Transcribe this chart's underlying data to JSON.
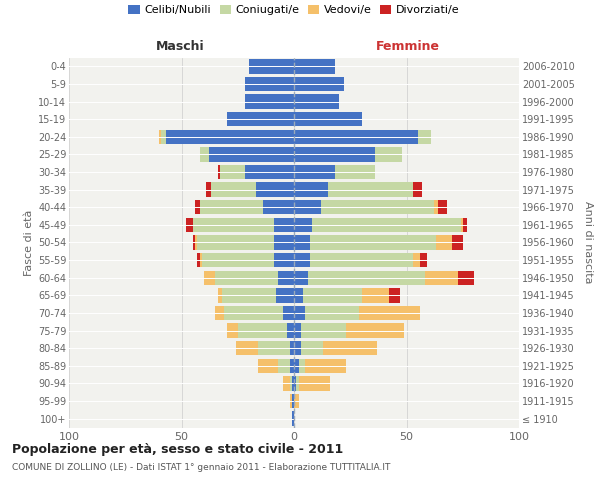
{
  "age_groups": [
    "100+",
    "95-99",
    "90-94",
    "85-89",
    "80-84",
    "75-79",
    "70-74",
    "65-69",
    "60-64",
    "55-59",
    "50-54",
    "45-49",
    "40-44",
    "35-39",
    "30-34",
    "25-29",
    "20-24",
    "15-19",
    "10-14",
    "5-9",
    "0-4"
  ],
  "birth_years": [
    "≤ 1910",
    "1911-1915",
    "1916-1920",
    "1921-1925",
    "1926-1930",
    "1931-1935",
    "1936-1940",
    "1941-1945",
    "1946-1950",
    "1951-1955",
    "1956-1960",
    "1961-1965",
    "1966-1970",
    "1971-1975",
    "1976-1980",
    "1981-1985",
    "1986-1990",
    "1991-1995",
    "1996-2000",
    "2001-2005",
    "2006-2010"
  ],
  "colors": {
    "celibi": "#4472c4",
    "coniugati": "#c5d8a4",
    "vedovi": "#f5c06a",
    "divorziati": "#cc2222"
  },
  "males": {
    "celibi": [
      1,
      1,
      1,
      2,
      2,
      3,
      5,
      8,
      7,
      9,
      9,
      9,
      14,
      17,
      22,
      38,
      57,
      30,
      22,
      22,
      20
    ],
    "coniugati": [
      0,
      0,
      1,
      5,
      14,
      22,
      26,
      24,
      28,
      32,
      34,
      36,
      28,
      20,
      11,
      4,
      2,
      0,
      0,
      0,
      0
    ],
    "vedovi": [
      0,
      1,
      3,
      9,
      10,
      5,
      4,
      2,
      5,
      1,
      1,
      0,
      0,
      0,
      0,
      0,
      1,
      0,
      0,
      0,
      0
    ],
    "divorziati": [
      0,
      0,
      0,
      0,
      0,
      0,
      0,
      0,
      0,
      1,
      1,
      3,
      2,
      2,
      1,
      0,
      0,
      0,
      0,
      0,
      0
    ]
  },
  "females": {
    "celibi": [
      0,
      0,
      1,
      2,
      3,
      3,
      5,
      4,
      6,
      7,
      7,
      8,
      12,
      15,
      18,
      36,
      55,
      30,
      20,
      22,
      18
    ],
    "coniugati": [
      0,
      0,
      1,
      3,
      10,
      20,
      24,
      26,
      52,
      46,
      56,
      66,
      50,
      38,
      18,
      12,
      6,
      0,
      0,
      0,
      0
    ],
    "vedovi": [
      0,
      2,
      14,
      18,
      24,
      26,
      27,
      12,
      15,
      3,
      7,
      1,
      2,
      0,
      0,
      0,
      0,
      0,
      0,
      0,
      0
    ],
    "divorziati": [
      0,
      0,
      0,
      0,
      0,
      0,
      0,
      5,
      7,
      3,
      5,
      2,
      4,
      4,
      0,
      0,
      0,
      0,
      0,
      0,
      0
    ]
  },
  "title": "Popolazione per età, sesso e stato civile - 2011",
  "subtitle": "COMUNE DI ZOLLINO (LE) - Dati ISTAT 1° gennaio 2011 - Elaborazione TUTTITALIA.IT",
  "xlabel_left": "Maschi",
  "xlabel_right": "Femmine",
  "ylabel_left": "Fasce di età",
  "ylabel_right": "Anni di nascita",
  "xlim": 100,
  "bg_color": "#f2f2ee",
  "grid_color": "#cccccc",
  "legend_labels": [
    "Celibi/Nubili",
    "Coniugati/e",
    "Vedovi/e",
    "Divorziati/e"
  ]
}
